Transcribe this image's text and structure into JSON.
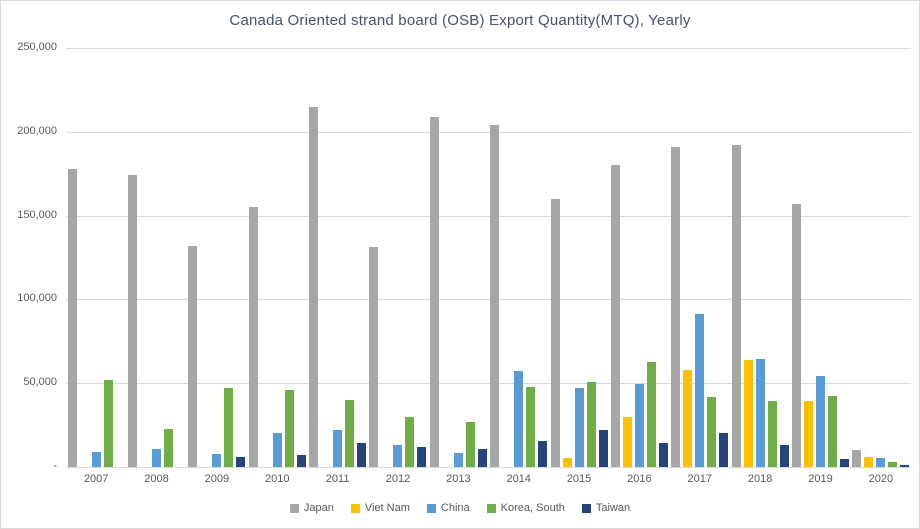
{
  "chart_data": {
    "type": "bar",
    "title": "Canada Oriented strand board (OSB) Export Quantity(MTQ), Yearly",
    "categories": [
      "2007",
      "2008",
      "2009",
      "2010",
      "2011",
      "2012",
      "2013",
      "2014",
      "2015",
      "2016",
      "2017",
      "2018",
      "2019",
      "2020"
    ],
    "series": [
      {
        "name": "Japan",
        "color": "#a6a6a6",
        "values": [
          178000,
          174000,
          132000,
          155000,
          215000,
          131000,
          209000,
          204000,
          160000,
          180000,
          191000,
          192000,
          157000,
          10000
        ]
      },
      {
        "name": "Viet Nam",
        "color": "#ffc000",
        "values": [
          0,
          0,
          0,
          0,
          0,
          0,
          0,
          0,
          5500,
          30000,
          58000,
          64000,
          39500,
          6000
        ]
      },
      {
        "name": "China",
        "color": "#5b9bd5",
        "values": [
          9000,
          10500,
          8000,
          20000,
          22000,
          13000,
          8500,
          57000,
          47000,
          49500,
          91500,
          64500,
          54500,
          5500
        ]
      },
      {
        "name": "Korea, South",
        "color": "#70ad47",
        "values": [
          52000,
          22500,
          47000,
          46000,
          40000,
          30000,
          27000,
          48000,
          51000,
          62500,
          41500,
          39500,
          42500,
          3000
        ]
      },
      {
        "name": "Taiwan",
        "color": "#264478",
        "values": [
          0,
          0,
          6000,
          7000,
          14500,
          12000,
          11000,
          15500,
          22000,
          14500,
          20000,
          13000,
          4500,
          1500
        ]
      }
    ],
    "ylim": [
      0,
      250000
    ],
    "ytick_step": 50000,
    "ytick_labels": [
      "-",
      "50,000",
      "100,000",
      "150,000",
      "200,000",
      "250,000"
    ],
    "grid": true,
    "legend_position": "bottom",
    "colors": {
      "title_text": "#44546a",
      "axis_text": "#595959",
      "gridline": "#d9d9d9"
    }
  }
}
